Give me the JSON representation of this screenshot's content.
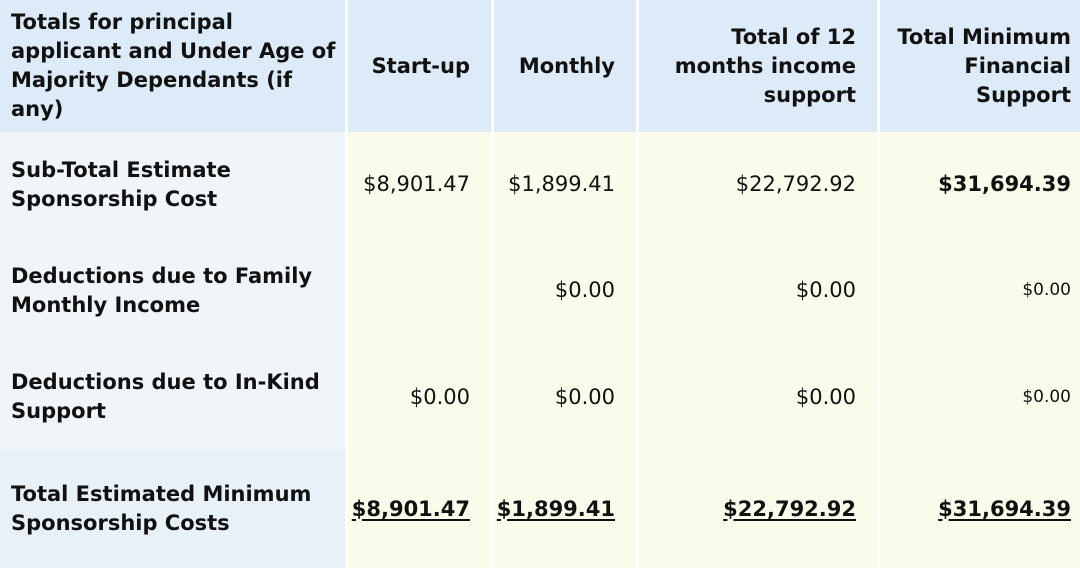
{
  "headers": {
    "category": "Totals for principal applicant and Under Age of Majority Dependants (if any)",
    "startup": "Start-up",
    "monthly": "Monthly",
    "twelve_months": "Total of 12 months income support",
    "total_minimum": "Total Minimum Financial Support"
  },
  "rows": [
    {
      "label": "Sub-Total Estimate Sponsorship Cost",
      "startup": "$8,901.47",
      "monthly": "$1,899.41",
      "twelve_months": "$22,792.92",
      "total_minimum": "$31,694.39"
    },
    {
      "label": "Deductions due to Family Monthly Income",
      "startup": "",
      "monthly": "$0.00",
      "twelve_months": "$0.00",
      "total_minimum": "$0.00"
    },
    {
      "label": "Deductions due to In-Kind Support",
      "startup": "$0.00",
      "monthly": "$0.00",
      "twelve_months": "$0.00",
      "total_minimum": "$0.00"
    },
    {
      "label": "Total Estimated Minimum Sponsorship Costs",
      "startup": "$8,901.47",
      "monthly": "$1,899.41",
      "twelve_months": "$22,792.92",
      "total_minimum": "$31,694.39"
    }
  ],
  "colors": {
    "header_bg": "#dcebf7",
    "label_bg": "#f0f5fa",
    "value_bg": "#fbfbeb"
  }
}
